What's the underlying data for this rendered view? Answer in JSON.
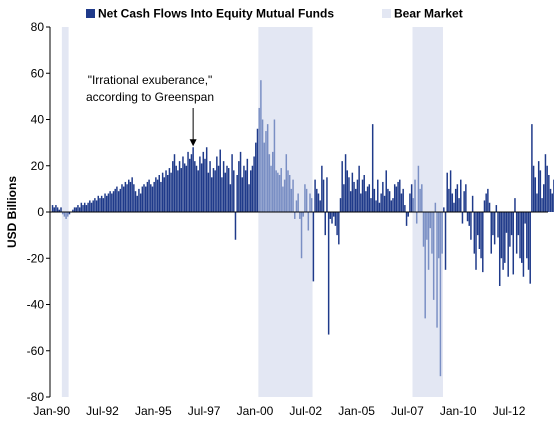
{
  "chart_data": {
    "type": "bar",
    "title": "",
    "xlabel": "",
    "ylabel": "USD Billions",
    "ylim": [
      -80,
      80
    ],
    "yticks": [
      -80,
      -60,
      -40,
      -20,
      0,
      20,
      40,
      60,
      80
    ],
    "xlim": [
      "1989-12",
      "2014-06"
    ],
    "x_tick_labels": [
      {
        "label": "Jan-90",
        "date": "1990-01"
      },
      {
        "label": "Jul-92",
        "date": "1992-07"
      },
      {
        "label": "Jan-95",
        "date": "1995-01"
      },
      {
        "label": "Jul-97",
        "date": "1997-07"
      },
      {
        "label": "Jan-00",
        "date": "2000-01"
      },
      {
        "label": "Jul-02",
        "date": "2002-07"
      },
      {
        "label": "Jan-05",
        "date": "2005-01"
      },
      {
        "label": "Jul-07",
        "date": "2007-07"
      },
      {
        "label": "Jan-10",
        "date": "2010-01"
      },
      {
        "label": "Jul-12",
        "date": "2012-07"
      }
    ],
    "grid": false,
    "legend_position": "top",
    "legend": [
      {
        "label": "Net Cash Flows Into Equity Mutual Funds",
        "kind": "bar",
        "color": "#1f3a8a"
      },
      {
        "label": "Bear Market",
        "kind": "shade",
        "color": "#e3e7f3"
      }
    ],
    "bear_markets": [
      {
        "start": "1990-07",
        "end": "1990-10"
      },
      {
        "start": "2000-03",
        "end": "2002-10"
      },
      {
        "start": "2007-10",
        "end": "2009-03"
      }
    ],
    "annotation": {
      "lines": [
        "\"Irrational exuberance,\"",
        "according to Greenspan"
      ],
      "target_date": "1996-12",
      "target_value": 28
    },
    "colors": {
      "flow": "#1f3a8a",
      "flow_in_bear": "#7a8fc4",
      "shade": "#e3e7f3"
    },
    "series": [
      {
        "start": "1990-01",
        "frequency": "monthly",
        "values": [
          3,
          2,
          3,
          2,
          1,
          2,
          -1,
          -2,
          -3,
          -2,
          -1,
          0,
          1,
          2,
          2,
          3,
          2,
          4,
          3,
          4,
          3,
          4,
          5,
          4,
          5,
          6,
          5,
          7,
          6,
          7,
          6,
          8,
          7,
          8,
          9,
          8,
          9,
          10,
          11,
          9,
          10,
          12,
          11,
          13,
          12,
          14,
          13,
          15,
          12,
          9,
          7,
          10,
          8,
          11,
          12,
          11,
          13,
          14,
          12,
          11,
          13,
          15,
          14,
          16,
          13,
          17,
          15,
          18,
          16,
          19,
          17,
          22,
          25,
          20,
          18,
          22,
          19,
          24,
          21,
          20,
          26,
          23,
          25,
          28,
          22,
          20,
          18,
          24,
          21,
          26,
          23,
          28,
          17,
          22,
          15,
          19,
          18,
          24,
          20,
          27,
          15,
          22,
          17,
          20,
          19,
          12,
          25,
          18,
          -12,
          16,
          22,
          26,
          15,
          20,
          18,
          23,
          12,
          18,
          20,
          24,
          30,
          36,
          45,
          57,
          40,
          30,
          35,
          38,
          25,
          20,
          26,
          40,
          18,
          17,
          16,
          19,
          11,
          14,
          25,
          18,
          16,
          10,
          14,
          -3,
          5,
          8,
          -3,
          -20,
          -2,
          12,
          10,
          -8,
          8,
          6,
          -30,
          14,
          10,
          8,
          5,
          20,
          14,
          -10,
          15,
          -53,
          -3,
          -5,
          -2,
          -6,
          -10,
          -14,
          6,
          22,
          12,
          25,
          18,
          15,
          9,
          17,
          13,
          10,
          14,
          20,
          8,
          14,
          16,
          9,
          11,
          12,
          6,
          38,
          10,
          5,
          14,
          4,
          8,
          13,
          7,
          18,
          10,
          9,
          5,
          6,
          12,
          11,
          13,
          14,
          8,
          10,
          3,
          -6,
          -2,
          8,
          12,
          6,
          14,
          -5,
          20,
          10,
          12,
          -15,
          -46,
          -12,
          -25,
          -7,
          -18,
          -38,
          4,
          -50,
          -20,
          -71,
          -18,
          2,
          -25,
          17,
          10,
          18,
          8,
          4,
          10,
          12,
          6,
          14,
          -5,
          9,
          12,
          -4,
          -6,
          -12,
          7,
          -18,
          -25,
          -10,
          -16,
          -20,
          -26,
          5,
          8,
          10,
          4,
          -18,
          -10,
          -14,
          3,
          -11,
          -32,
          -20,
          -25,
          -22,
          -9,
          -28,
          -15,
          -10,
          -27,
          6,
          -18,
          -10,
          -20,
          -22,
          -28,
          -5,
          -20,
          -25,
          -31,
          38,
          20,
          15,
          8,
          22,
          18,
          6,
          12,
          25,
          20,
          16,
          10,
          8,
          14,
          21,
          24,
          12,
          9,
          18,
          10,
          15,
          9
        ]
      }
    ]
  }
}
